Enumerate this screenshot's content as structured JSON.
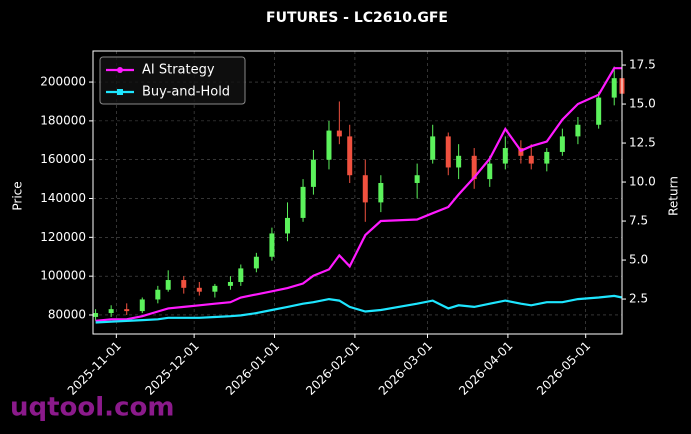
{
  "chart_data": {
    "type": "candlestick",
    "title": "FUTURES - LC2610.GFE",
    "ylabel": "Price",
    "y2label": "Return",
    "watermark": "uqtool.com",
    "x": [
      "2025-10-24",
      "2025-10-30",
      "2025-11-05",
      "2025-11-11",
      "2025-11-17",
      "2025-11-21",
      "2025-11-27",
      "2025-12-03",
      "2025-12-09",
      "2025-12-15",
      "2025-12-19",
      "2025-12-25",
      "2025-12-31",
      "2026-01-06",
      "2026-01-12",
      "2026-01-16",
      "2026-01-22",
      "2026-01-26",
      "2026-01-30",
      "2026-02-05",
      "2026-02-11",
      "2026-02-25",
      "2026-03-03",
      "2026-03-09",
      "2026-03-13",
      "2026-03-19",
      "2026-03-25",
      "2026-03-31",
      "2026-04-06",
      "2026-04-10",
      "2026-04-16",
      "2026-04-22",
      "2026-04-28",
      "2026-05-06",
      "2026-05-12",
      "2026-05-15"
    ],
    "xlim": [
      "2025-10-23",
      "2026-05-15"
    ],
    "xticks": [
      "2025-11-01",
      "2025-12-01",
      "2026-01-01",
      "2026-02-01",
      "2026-03-01",
      "2026-04-01",
      "2026-05-01"
    ],
    "ylim": [
      70200,
      216000
    ],
    "yticks": [
      80000,
      100000,
      120000,
      140000,
      160000,
      180000,
      200000
    ],
    "y2lim": [
      0.26,
      18.4
    ],
    "y2ticks": [
      2.5,
      {
        "value": 5,
        "label": "5.0"
      },
      7.5,
      {
        "value": 10,
        "label": "10.0"
      },
      12.5,
      {
        "value": 15,
        "label": "15.0"
      },
      17.5
    ],
    "grid": true,
    "legend": "upper left",
    "candles": {
      "up_color": "#5cf25c",
      "down_color": "#f0513f",
      "open": [
        79000,
        81000,
        83000,
        82000,
        88000,
        93000,
        98000,
        94000,
        92000,
        95000,
        97000,
        104000,
        110000,
        122000,
        130000,
        146000,
        160000,
        175000,
        172000,
        152000,
        138000,
        148000,
        160000,
        172000,
        156000,
        162000,
        150000,
        158000,
        166000,
        162000,
        158000,
        164000,
        172000,
        178000,
        192000,
        202000
      ],
      "high": [
        83000,
        85000,
        86000,
        89000,
        95000,
        103000,
        100000,
        97000,
        96000,
        100000,
        106000,
        112000,
        125000,
        138000,
        150000,
        165000,
        180000,
        190000,
        178000,
        160000,
        152000,
        158000,
        178000,
        174000,
        168000,
        166000,
        162000,
        172000,
        170000,
        168000,
        166000,
        176000,
        182000,
        195000,
        208000,
        205000
      ],
      "low": [
        77000,
        79000,
        80000,
        81000,
        86000,
        92000,
        91000,
        90000,
        89000,
        93000,
        95000,
        102000,
        108000,
        118000,
        128000,
        142000,
        155000,
        168000,
        148000,
        128000,
        133000,
        140000,
        158000,
        152000,
        150000,
        145000,
        146000,
        155000,
        158000,
        155000,
        154000,
        162000,
        168000,
        176000,
        188000,
        190000
      ],
      "close": [
        81000,
        83000,
        82000,
        88000,
        93000,
        98000,
        94000,
        92000,
        95000,
        97000,
        104000,
        110000,
        122000,
        130000,
        146000,
        160000,
        175000,
        172000,
        152000,
        138000,
        148000,
        152000,
        172000,
        156000,
        162000,
        150000,
        158000,
        166000,
        162000,
        158000,
        164000,
        172000,
        178000,
        192000,
        202000,
        194000
      ]
    },
    "series": [
      {
        "name": "AI Strategy",
        "color": "#ff1aff",
        "marker": "circle",
        "axis": "y2",
        "values": [
          1.1,
          1.2,
          1.2,
          1.4,
          1.7,
          1.9,
          2.0,
          2.1,
          2.2,
          2.3,
          2.6,
          2.8,
          3.0,
          3.2,
          3.5,
          4.0,
          4.4,
          5.3,
          4.6,
          6.6,
          7.5,
          7.6,
          8.0,
          8.4,
          9.2,
          10.3,
          11.5,
          13.4,
          12.0,
          12.3,
          12.6,
          14.0,
          15.0,
          15.6,
          17.3,
          17.3
        ]
      },
      {
        "name": "Buy-and-Hold",
        "color": "#1ee6ff",
        "marker": "square",
        "axis": "y2",
        "values": [
          1.0,
          1.05,
          1.1,
          1.15,
          1.2,
          1.3,
          1.3,
          1.3,
          1.35,
          1.4,
          1.45,
          1.6,
          1.8,
          2.0,
          2.2,
          2.3,
          2.5,
          2.4,
          2.0,
          1.7,
          1.8,
          2.2,
          2.4,
          1.9,
          2.1,
          2.0,
          2.2,
          2.4,
          2.2,
          2.1,
          2.3,
          2.3,
          2.5,
          2.6,
          2.7,
          2.6
        ]
      }
    ]
  }
}
